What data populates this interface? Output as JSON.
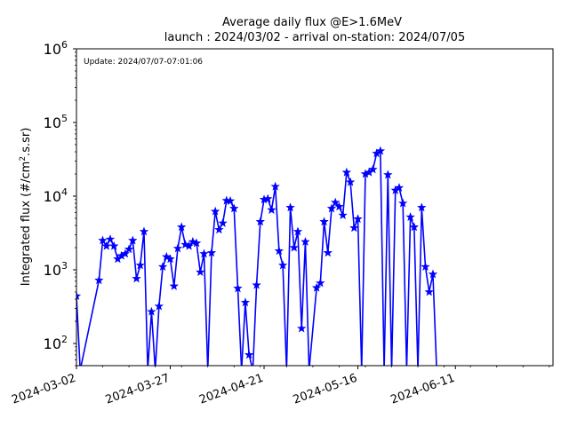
{
  "chart_data": {
    "type": "line",
    "title": "Average daily flux @E>1.6MeV",
    "subtitle": "launch : 2024/03/02 - arrival on-station: 2024/07/05",
    "ylabel": "Integrated flux (#/cm",
    "ylabel_sup": "2",
    "ylabel_tail": ".s.sr)",
    "annotation": "Update: 2024/07/07-07:01:06",
    "y_scale": "log",
    "ylim": [
      50,
      1000000
    ],
    "xlim": [
      "2024-03-02",
      "2024-07-07"
    ],
    "x_ticks": [
      "2024-03-02",
      "2024-03-27",
      "2024-04-21",
      "2024-05-16",
      "2024-06-11"
    ],
    "y_ticks": [
      {
        "value": 100,
        "base": "10",
        "exp": "2"
      },
      {
        "value": 1000,
        "base": "10",
        "exp": "3"
      },
      {
        "value": 10000,
        "base": "10",
        "exp": "4"
      },
      {
        "value": 100000,
        "base": "10",
        "exp": "5"
      },
      {
        "value": 1000000,
        "base": "10",
        "exp": "6"
      }
    ],
    "grid": false,
    "legend": "none",
    "series_color": "#0000ff",
    "marker": "star",
    "series": [
      {
        "points": [
          [
            "2024-03-02",
            440
          ],
          [
            "2024-03-03",
            null
          ],
          [
            "2024-03-08",
            720
          ],
          [
            "2024-03-09",
            2500
          ],
          [
            "2024-03-10",
            2100
          ],
          [
            "2024-03-11",
            2600
          ],
          [
            "2024-03-12",
            2100
          ],
          [
            "2024-03-13",
            1400
          ],
          [
            "2024-03-14",
            1550
          ],
          [
            "2024-03-15",
            1650
          ],
          [
            "2024-03-16",
            1900
          ],
          [
            "2024-03-17",
            2500
          ],
          [
            "2024-03-18",
            760
          ],
          [
            "2024-03-19",
            1150
          ],
          [
            "2024-03-20",
            3300
          ],
          [
            "2024-03-21",
            null
          ],
          [
            "2024-03-22",
            270
          ],
          [
            "2024-03-23",
            null
          ],
          [
            "2024-03-24",
            320
          ],
          [
            "2024-03-25",
            1100
          ],
          [
            "2024-03-26",
            1500
          ],
          [
            "2024-03-27",
            1400
          ],
          [
            "2024-03-28",
            600
          ],
          [
            "2024-03-29",
            1950
          ],
          [
            "2024-03-30",
            3800
          ],
          [
            "2024-03-31",
            2200
          ],
          [
            "2024-04-01",
            2100
          ],
          [
            "2024-04-02",
            2400
          ],
          [
            "2024-04-03",
            2300
          ],
          [
            "2024-04-04",
            930
          ],
          [
            "2024-04-05",
            1650
          ],
          [
            "2024-04-06",
            null
          ],
          [
            "2024-04-07",
            1700
          ],
          [
            "2024-04-08",
            6200
          ],
          [
            "2024-04-09",
            3500
          ],
          [
            "2024-04-10",
            4300
          ],
          [
            "2024-04-11",
            8700
          ],
          [
            "2024-04-12",
            8600
          ],
          [
            "2024-04-13",
            6800
          ],
          [
            "2024-04-14",
            560
          ],
          [
            "2024-04-15",
            null
          ],
          [
            "2024-04-16",
            360
          ],
          [
            "2024-04-17",
            70
          ],
          [
            "2024-04-18",
            null
          ],
          [
            "2024-04-19",
            620
          ],
          [
            "2024-04-20",
            4500
          ],
          [
            "2024-04-21",
            9000
          ],
          [
            "2024-04-22",
            9200
          ],
          [
            "2024-04-23",
            6500
          ],
          [
            "2024-04-24",
            13500
          ],
          [
            "2024-04-25",
            1800
          ],
          [
            "2024-04-26",
            1150
          ],
          [
            "2024-04-27",
            null
          ],
          [
            "2024-04-28",
            7000
          ],
          [
            "2024-04-29",
            2000
          ],
          [
            "2024-04-30",
            3300
          ],
          [
            "2024-05-01",
            160
          ],
          [
            "2024-05-02",
            2400
          ],
          [
            "2024-05-03",
            null
          ],
          [
            "2024-05-05",
            570
          ],
          [
            "2024-05-06",
            660
          ],
          [
            "2024-05-07",
            4500
          ],
          [
            "2024-05-08",
            1700
          ],
          [
            "2024-05-09",
            6800
          ],
          [
            "2024-05-10",
            8200
          ],
          [
            "2024-05-11",
            7200
          ],
          [
            "2024-05-12",
            5500
          ],
          [
            "2024-05-13",
            21000
          ],
          [
            "2024-05-14",
            15500
          ],
          [
            "2024-05-15",
            3700
          ],
          [
            "2024-05-16",
            4900
          ],
          [
            "2024-05-17",
            null
          ],
          [
            "2024-05-18",
            20000
          ],
          [
            "2024-05-19",
            21000
          ],
          [
            "2024-05-20",
            23000
          ],
          [
            "2024-05-21",
            38000
          ],
          [
            "2024-05-22",
            41000
          ],
          [
            "2024-05-23",
            null
          ],
          [
            "2024-05-24",
            19500
          ],
          [
            "2024-05-25",
            null
          ],
          [
            "2024-05-26",
            12000
          ],
          [
            "2024-05-27",
            13000
          ],
          [
            "2024-05-28",
            8000
          ],
          [
            "2024-05-29",
            null
          ],
          [
            "2024-05-30",
            5200
          ],
          [
            "2024-05-31",
            3800
          ],
          [
            "2024-06-01",
            null
          ],
          [
            "2024-06-02",
            7000
          ],
          [
            "2024-06-03",
            1100
          ],
          [
            "2024-06-04",
            500
          ],
          [
            "2024-06-05",
            870
          ],
          [
            "2024-06-06",
            null
          ]
        ]
      }
    ]
  }
}
